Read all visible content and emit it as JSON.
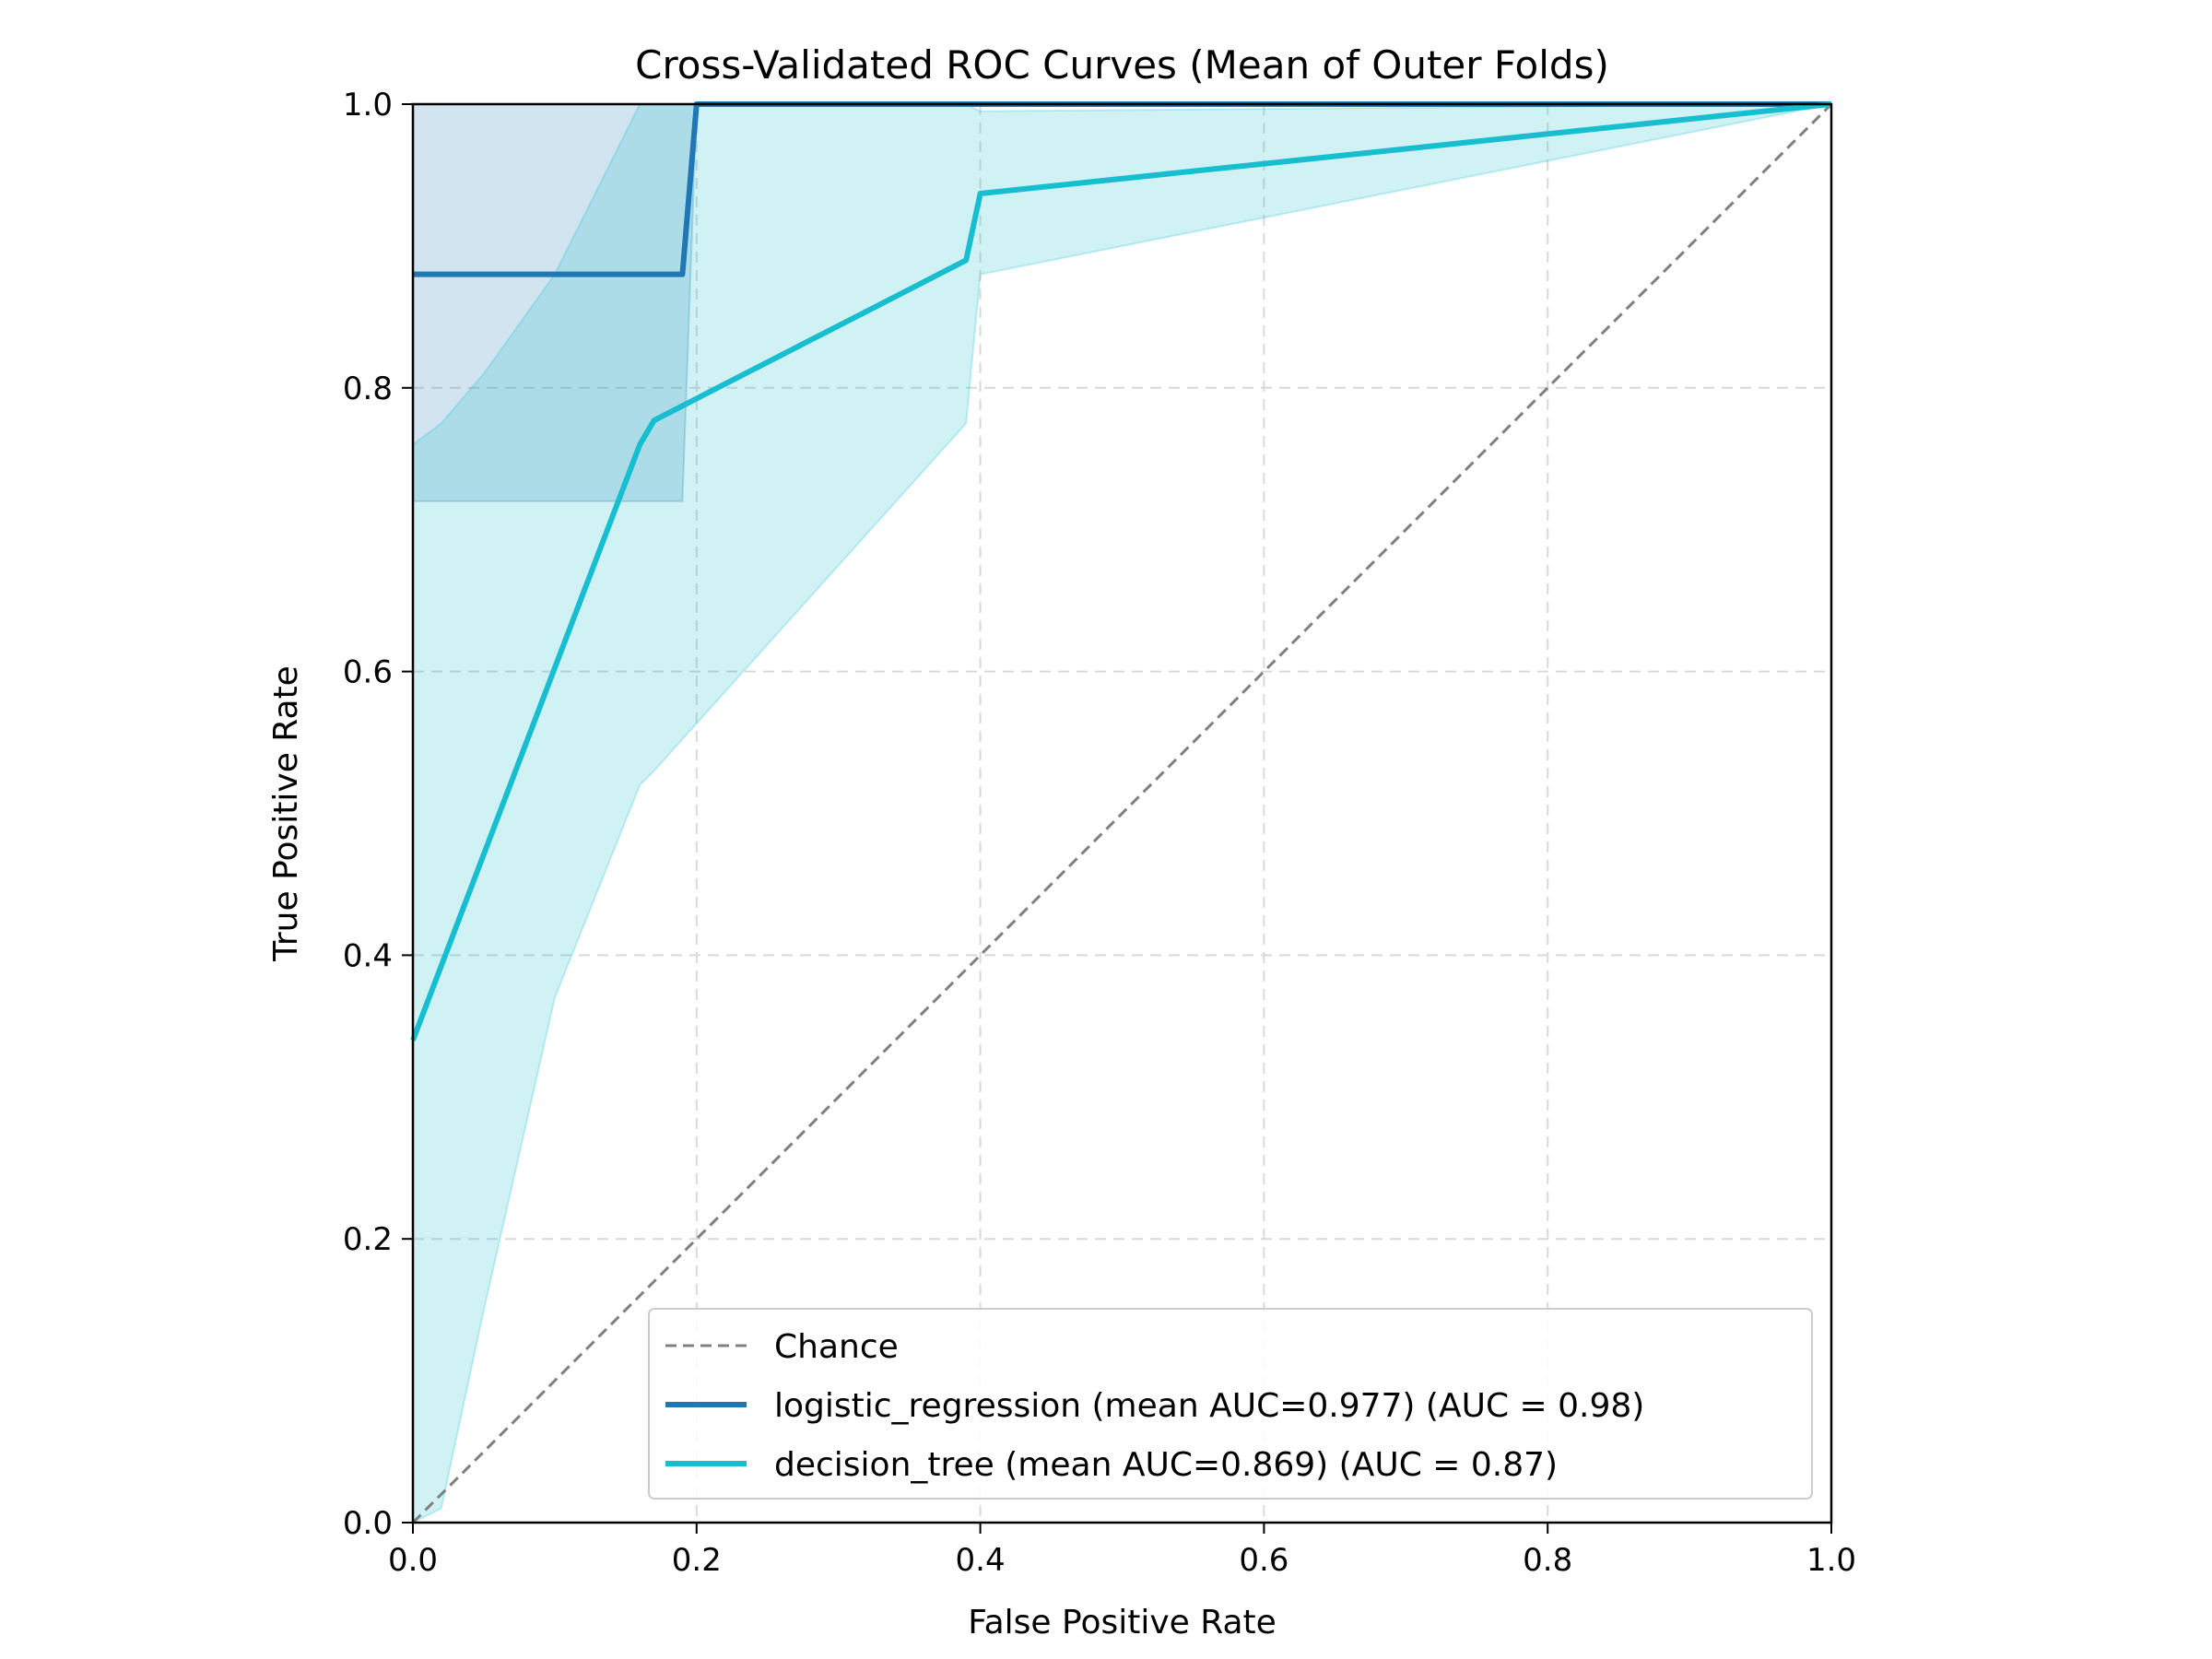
{
  "chart_data": {
    "type": "line",
    "title": "Cross-Validated ROC Curves (Mean of Outer Folds)",
    "xlabel": "False Positive Rate",
    "ylabel": "True Positive Rate",
    "xlim": [
      0,
      1
    ],
    "ylim": [
      0,
      1
    ],
    "xticks": [
      "0.0",
      "0.2",
      "0.4",
      "0.6",
      "0.8",
      "1.0"
    ],
    "yticks": [
      "0.0",
      "0.2",
      "0.4",
      "0.6",
      "0.8",
      "1.0"
    ],
    "grid": true,
    "legend_position": "lower-right",
    "series": [
      {
        "name": "Chance",
        "color": "#808080",
        "dashed": true,
        "x": [
          0,
          1
        ],
        "y": [
          0,
          1
        ]
      },
      {
        "name": "logistic_regression (mean AUC=0.977) (AUC = 0.98)",
        "color": "#1f77b4",
        "band_color": "#1f77b4",
        "x": [
          0,
          0.19,
          0.2,
          1.0
        ],
        "y": [
          0.88,
          0.88,
          1.0,
          1.0
        ],
        "band": {
          "x": [
            0,
            0.19,
            0.2,
            1.0
          ],
          "lower": [
            0.72,
            0.72,
            1.0,
            1.0
          ],
          "upper": [
            1.0,
            1.0,
            1.0,
            1.0
          ]
        }
      },
      {
        "name": "decision_tree (mean AUC=0.869) (AUC = 0.87)",
        "color": "#17becf",
        "band_color": "#17becf",
        "x": [
          0,
          0.16,
          0.17,
          0.39,
          0.4,
          1.0
        ],
        "y": [
          0.34,
          0.76,
          0.777,
          0.89,
          0.937,
          1.0
        ],
        "band": {
          "x": [
            0,
            0.02,
            0.05,
            0.1,
            0.16,
            0.17,
            0.39,
            0.4,
            1.0
          ],
          "lower": [
            0.0,
            0.01,
            0.15,
            0.37,
            0.52,
            0.53,
            0.775,
            0.88,
            1.0
          ],
          "upper": [
            0.76,
            0.775,
            0.81,
            0.88,
            1.0,
            1.0,
            1.0,
            0.995,
            1.0
          ]
        }
      }
    ]
  }
}
